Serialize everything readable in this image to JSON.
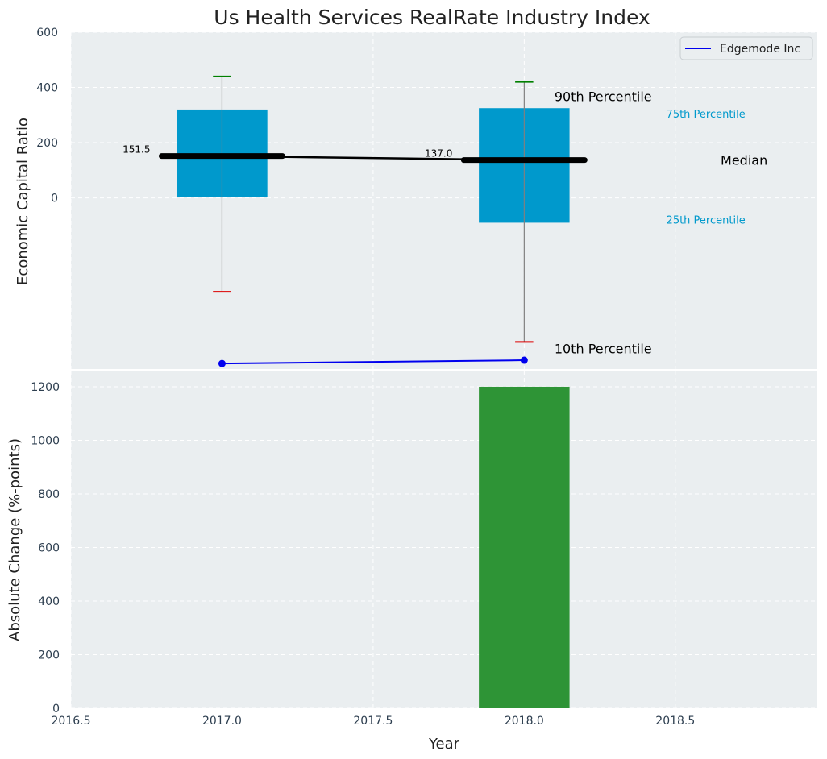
{
  "chart_data": {
    "title": "Us Health Services RealRate Industry Index",
    "type": "box+line+bar",
    "colors": {
      "box": "#0099cc",
      "median": "#000000",
      "whisker_top": "#008000",
      "whisker_bottom": "#dd0000",
      "company": "#0000ee",
      "bar": "#2e9436",
      "panel_bg": "#eaeef0",
      "grid": "#ffffff"
    },
    "top": {
      "ylabel": "Economic Capital Ratio",
      "ylim": [
        -620,
        600
      ],
      "yticks": [
        0,
        200,
        400,
        600
      ],
      "grid": true,
      "legend": {
        "position": "top-right",
        "entries": [
          "Edgemode Inc"
        ]
      },
      "boxes": [
        {
          "x": 2017,
          "p10": -340,
          "p25": 2,
          "median": 151.5,
          "p75": 320,
          "p90": 440,
          "median_label": "151.5"
        },
        {
          "x": 2018,
          "p10": -522,
          "p25": -90,
          "median": 137.0,
          "p75": 325,
          "p90": 420,
          "median_label": "137.0"
        }
      ],
      "median_line": {
        "x": [
          2017,
          2018
        ],
        "y": [
          151.5,
          137.0
        ]
      },
      "company": {
        "name": "Edgemode Inc",
        "x": [
          2017,
          2018
        ],
        "y": [
          -600,
          -588
        ]
      },
      "annotations": {
        "p90": "90th Percentile",
        "p75": "75th Percentile",
        "median": "Median",
        "p25": "25th Percentile",
        "p10": "10th Percentile"
      }
    },
    "bottom": {
      "xlabel": "Year",
      "ylabel": "Absolute Change (%-points)",
      "ylim": [
        0,
        1260
      ],
      "yticks": [
        0,
        200,
        400,
        600,
        800,
        1000,
        1200
      ],
      "xlim": [
        2016.5,
        2018.97
      ],
      "xticks": [
        2016.5,
        2017.0,
        2017.5,
        2018.0,
        2018.5
      ],
      "xtick_labels": [
        "2016.5",
        "2017.0",
        "2017.5",
        "2018.0",
        "2018.5"
      ],
      "grid": true,
      "bars": [
        {
          "x": 2018,
          "value": 1200
        }
      ]
    }
  }
}
